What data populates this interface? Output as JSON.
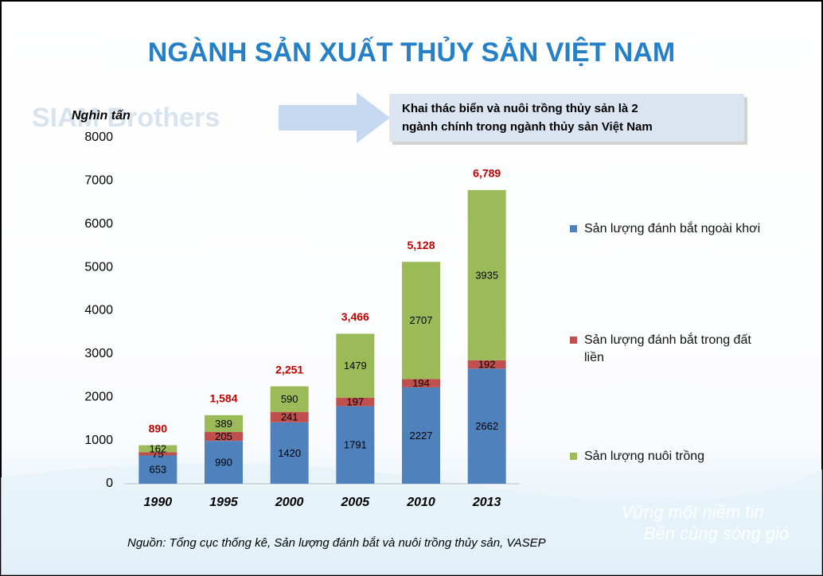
{
  "chart_data": {
    "type": "stacked-bar",
    "title": "NGÀNH SẢN XUẤT THỦY SẢN VIỆT NAM",
    "y_label": "Nghìn tấn",
    "callout": [
      "Khai thác biển và nuôi trồng thủy sản là 2",
      "ngành chính trong ngành thủy sản Việt Nam"
    ],
    "source": "Nguồn: Tổng cục thống kê, Sản lượng đánh bắt và nuôi trồng thủy sản, VASEP",
    "watermark": [
      "SIAM Brothers",
      "Vững một niềm tin",
      "Bền cùng sóng gió"
    ],
    "categories": [
      "1990",
      "1995",
      "2000",
      "2005",
      "2010",
      "2013"
    ],
    "series": [
      {
        "name": "Sản lượng đánh bắt ngoài khơi",
        "color": "#4f81bd",
        "values": [
          653,
          990,
          1420,
          1791,
          2227,
          2662
        ]
      },
      {
        "name": "Sản lượng đánh bắt trong đất liền",
        "color": "#c0504d",
        "values": [
          75,
          205,
          241,
          197,
          194,
          192
        ]
      },
      {
        "name": "Sản lượng nuôi trồng",
        "color": "#9bbb59",
        "values": [
          162,
          389,
          590,
          1479,
          2707,
          3935
        ]
      }
    ],
    "totals": {
      "values": [
        890,
        1584,
        2251,
        3466,
        5128,
        6789
      ],
      "value_labels": [
        "890",
        "1,584",
        "2,251",
        "3,466",
        "5,128",
        "6,789"
      ],
      "color": "#c00000"
    },
    "ylim": [
      0,
      8000
    ],
    "yticks": [
      0,
      1000,
      2000,
      3000,
      4000,
      5000,
      6000,
      7000,
      8000
    ],
    "grid": false,
    "legend": "right"
  }
}
